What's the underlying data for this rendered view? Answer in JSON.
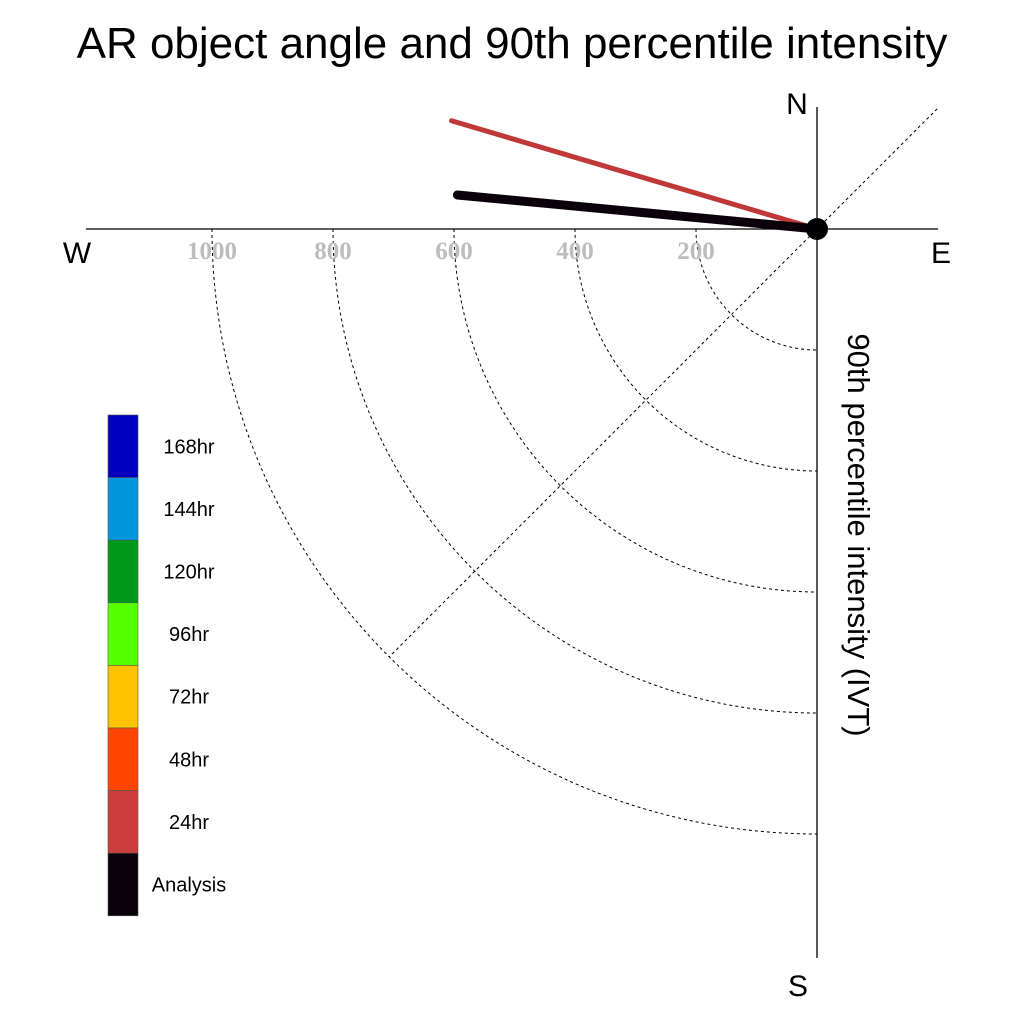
{
  "chart_data": {
    "type": "polar-vector",
    "title": "AR object angle and 90th percentile intensity",
    "radial_label": "90th percentile intensity (IVT)",
    "compass": {
      "north": "N",
      "south": "S",
      "east": "E",
      "west": "W"
    },
    "radial_ticks": [
      200,
      400,
      600,
      800,
      1000
    ],
    "radial_tick_labels": [
      "200",
      "400",
      "600",
      "800",
      "1000"
    ],
    "radial_max": 1200,
    "grid": true,
    "legend_position": "left",
    "legend": [
      {
        "label": "168hr",
        "color": "#0000c0"
      },
      {
        "label": "144hr",
        "color": "#0097dc"
      },
      {
        "label": "120hr",
        "color": "#009a1a"
      },
      {
        "label": "96hr",
        "color": "#55ff00"
      },
      {
        "label": "72hr",
        "color": "#ffc300"
      },
      {
        "label": "48hr",
        "color": "#ff4500"
      },
      {
        "label": "24hr",
        "color": "#cc3d3d"
      },
      {
        "label": "Analysis",
        "color": "#0a000a"
      }
    ],
    "vectors": [
      {
        "lead": "24hr",
        "color": "#c03838",
        "intensity": 630,
        "angle_deg_ccw_from_east": 163.5
      },
      {
        "lead": "Analysis",
        "color": "#0a000a",
        "intensity": 597,
        "angle_deg_ccw_from_east": 174.6
      }
    ]
  }
}
